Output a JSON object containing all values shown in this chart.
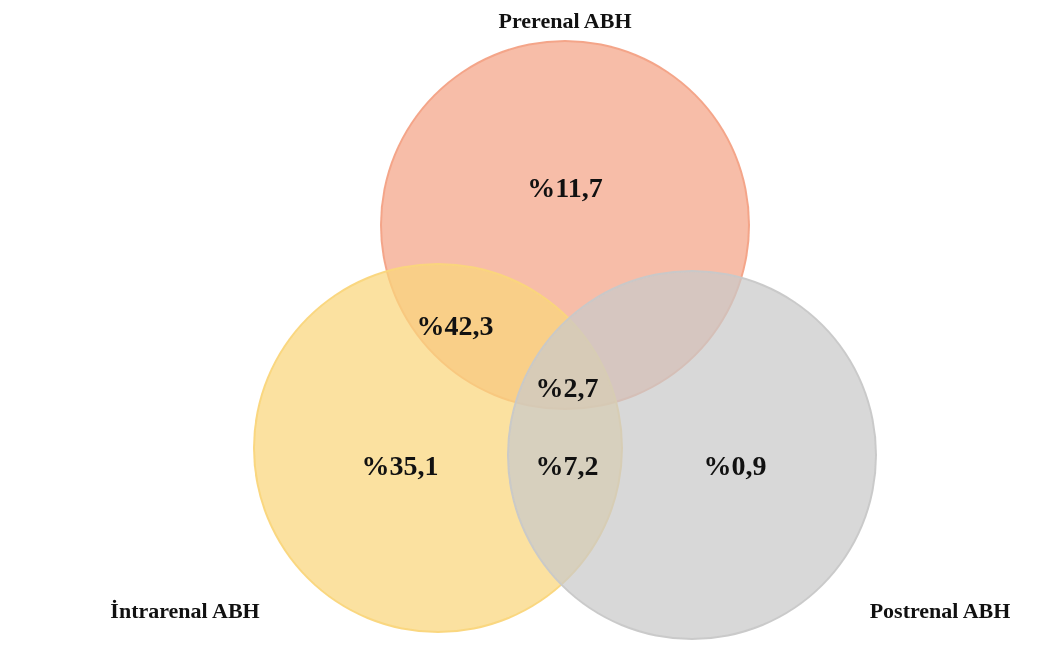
{
  "chart_data": {
    "type": "other",
    "categories": [
      null,
      null,
      null,
      null,
      null,
      null
    ],
    "values": [
      11.7,
      42.3,
      2.7,
      35.1,
      7.2,
      0.9
    ],
    "value_labels": [
      "%11,7",
      "%42,3",
      "%2,7",
      "%35,1",
      "%7,2",
      "%0,9"
    ],
    "annotations": [
      "Prerenal ABH",
      "İntrarenal ABH",
      "Postrenal ABH"
    ]
  }
}
